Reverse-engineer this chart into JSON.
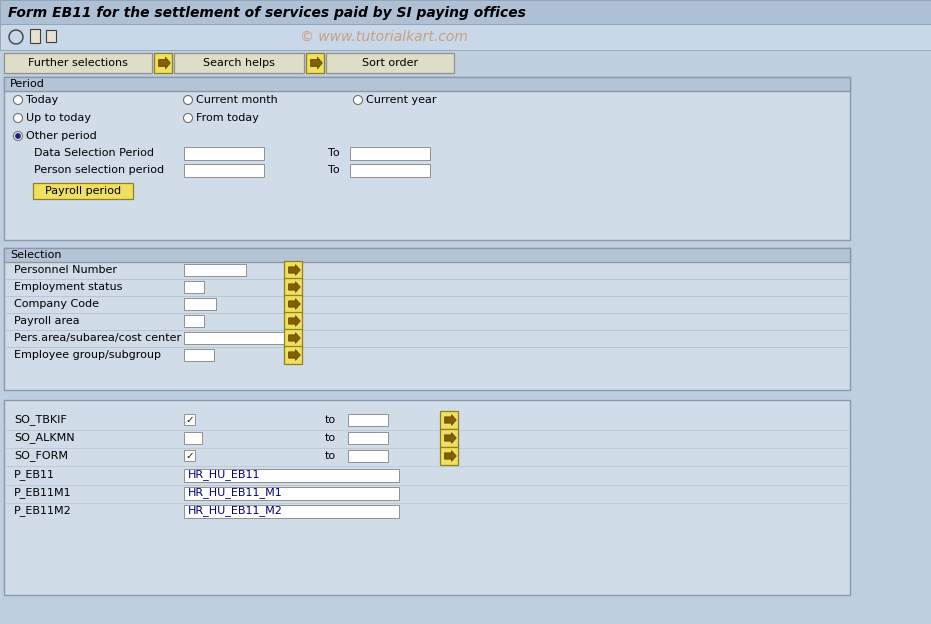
{
  "title": "Form EB11 for the settlement of services paid by SI paying offices",
  "watermark": "© www.tutorialkart.com",
  "bg_outer": "#c0cfe0",
  "bg_main": "#c8d8e8",
  "title_bg": "#aec0d4",
  "toolbar_bg": "#c8d8e8",
  "panel_bg": "#d0dce8",
  "panel_border": "#8899aa",
  "section_header_bg": "#b4c4d4",
  "button_bg": "#f0e060",
  "button_border": "#908020",
  "input_bg": "#ffffff",
  "input_border": "#909090",
  "text_color": "#000000",
  "nav_buttons": [
    "Further selections",
    "Search helps",
    "Sort order"
  ],
  "period_label": "Period",
  "selection_label": "Selection",
  "data_sel_label": "Data Selection Period",
  "person_sel_label": "Person selection period",
  "to_label": "To",
  "payroll_btn": "Payroll period",
  "selection_rows": [
    {
      "label": "Personnel Number",
      "fw": 62,
      "small": false
    },
    {
      "label": "Employment status",
      "fw": 20,
      "small": true
    },
    {
      "label": "Company Code",
      "fw": 32,
      "small": false
    },
    {
      "label": "Payroll area",
      "fw": 20,
      "small": true
    },
    {
      "label": "Pers.area/subarea/cost center",
      "fw": 110,
      "small": false
    },
    {
      "label": "Employee group/subgroup",
      "fw": 30,
      "small": true
    }
  ],
  "bottom_rows": [
    {
      "label": "SO_TBKIF",
      "has_check": true,
      "to": true,
      "has_arrow": true,
      "value": ""
    },
    {
      "label": "SO_ALKMN",
      "has_check": false,
      "to": true,
      "has_arrow": true,
      "value": ""
    },
    {
      "label": "SO_FORM",
      "has_check": true,
      "to": true,
      "has_arrow": true,
      "value": ""
    },
    {
      "label": "P_EB11",
      "has_check": false,
      "to": false,
      "has_arrow": false,
      "value": "HR_HU_EB11"
    },
    {
      "label": "P_EB11M1",
      "has_check": false,
      "to": false,
      "has_arrow": false,
      "value": "HR_HU_EB11_M1"
    },
    {
      "label": "P_EB11M2",
      "has_check": false,
      "to": false,
      "has_arrow": false,
      "value": "HR_HU_EB11_M2"
    }
  ]
}
